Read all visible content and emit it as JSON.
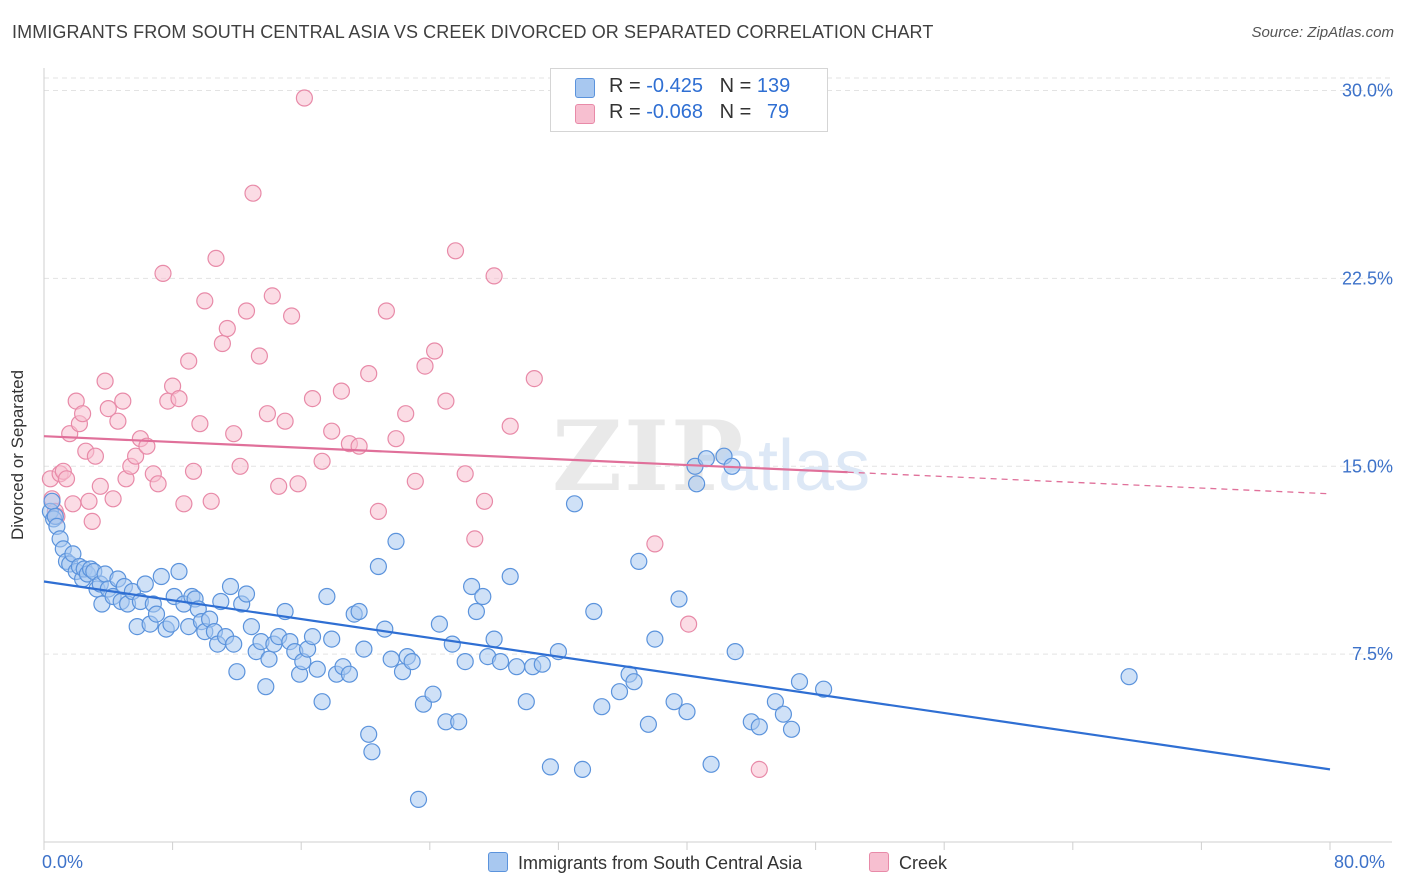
{
  "header": {
    "title": "IMMIGRANTS FROM SOUTH CENTRAL ASIA VS CREEK DIVORCED OR SEPARATED CORRELATION CHART",
    "source": "Source: ZipAtlas.com"
  },
  "watermark": {
    "zip": "ZIP",
    "atlas": "atlas"
  },
  "legend": {
    "rows": [
      {
        "r_label": "R = ",
        "r_value": "-0.425",
        "n_label": "N = ",
        "n_value": "139"
      },
      {
        "r_label": "R = ",
        "r_value": "-0.068",
        "n_label": "N = ",
        "n_value": "79"
      }
    ]
  },
  "colors": {
    "blue_fill": "#a8c8f0",
    "blue_stroke": "#5b93dc",
    "blue_line": "#2f6fd3",
    "pink_fill": "#f7bfd0",
    "pink_stroke": "#e88aa8",
    "pink_line": "#e0709a",
    "grid": "#e3e3e3",
    "tick_text": "#3d72c9"
  },
  "chart_data": {
    "type": "scatter",
    "title": "IMMIGRANTS FROM SOUTH CENTRAL ASIA VS CREEK DIVORCED OR SEPARATED CORRELATION CHART",
    "xlabel": "",
    "ylabel": "Divorced or Separated",
    "xlim": [
      0,
      80
    ],
    "ylim": [
      0,
      30.5
    ],
    "x_tick_labels": [
      "0.0%",
      "80.0%"
    ],
    "y_ticks": [
      7.5,
      15.0,
      22.5,
      30.0
    ],
    "y_tick_labels": [
      "7.5%",
      "15.0%",
      "22.5%",
      "30.0%"
    ],
    "grid": true,
    "legend_position": "top-center",
    "series": [
      {
        "name": "Immigrants from South Central Asia",
        "r": -0.425,
        "n": 139,
        "trend": {
          "x": [
            0,
            80
          ],
          "y": [
            10.4,
            2.9
          ],
          "solid_to": 80
        },
        "points": [
          [
            0.4,
            13.2
          ],
          [
            0.5,
            13.6
          ],
          [
            0.6,
            12.9
          ],
          [
            0.7,
            13.0
          ],
          [
            0.8,
            12.6
          ],
          [
            1.0,
            12.1
          ],
          [
            1.2,
            11.7
          ],
          [
            1.4,
            11.2
          ],
          [
            1.6,
            11.1
          ],
          [
            1.8,
            11.5
          ],
          [
            2.0,
            10.8
          ],
          [
            2.2,
            11.0
          ],
          [
            2.4,
            10.5
          ],
          [
            2.5,
            10.9
          ],
          [
            2.7,
            10.7
          ],
          [
            2.9,
            10.9
          ],
          [
            3.1,
            10.8
          ],
          [
            3.3,
            10.1
          ],
          [
            3.5,
            10.3
          ],
          [
            3.6,
            9.5
          ],
          [
            3.8,
            10.7
          ],
          [
            4.0,
            10.1
          ],
          [
            4.3,
            9.8
          ],
          [
            4.6,
            10.5
          ],
          [
            4.8,
            9.6
          ],
          [
            5.0,
            10.2
          ],
          [
            5.2,
            9.5
          ],
          [
            5.5,
            10.0
          ],
          [
            5.8,
            8.6
          ],
          [
            6.0,
            9.6
          ],
          [
            6.3,
            10.3
          ],
          [
            6.6,
            8.7
          ],
          [
            6.8,
            9.5
          ],
          [
            7.0,
            9.1
          ],
          [
            7.3,
            10.6
          ],
          [
            7.6,
            8.5
          ],
          [
            7.9,
            8.7
          ],
          [
            8.1,
            9.8
          ],
          [
            8.4,
            10.8
          ],
          [
            8.7,
            9.5
          ],
          [
            9.0,
            8.6
          ],
          [
            9.2,
            9.8
          ],
          [
            9.4,
            9.7
          ],
          [
            9.6,
            9.3
          ],
          [
            9.8,
            8.8
          ],
          [
            10.0,
            8.4
          ],
          [
            10.3,
            8.9
          ],
          [
            10.6,
            8.4
          ],
          [
            10.8,
            7.9
          ],
          [
            11.0,
            9.6
          ],
          [
            11.3,
            8.2
          ],
          [
            11.6,
            10.2
          ],
          [
            11.8,
            7.9
          ],
          [
            12.0,
            6.8
          ],
          [
            12.3,
            9.5
          ],
          [
            12.6,
            9.9
          ],
          [
            12.9,
            8.6
          ],
          [
            13.2,
            7.6
          ],
          [
            13.5,
            8.0
          ],
          [
            13.8,
            6.2
          ],
          [
            14.0,
            7.3
          ],
          [
            14.3,
            7.9
          ],
          [
            14.6,
            8.2
          ],
          [
            15.0,
            9.2
          ],
          [
            15.3,
            8.0
          ],
          [
            15.6,
            7.6
          ],
          [
            15.9,
            6.7
          ],
          [
            16.1,
            7.2
          ],
          [
            16.4,
            7.7
          ],
          [
            16.7,
            8.2
          ],
          [
            17.0,
            6.9
          ],
          [
            17.3,
            5.6
          ],
          [
            17.6,
            9.8
          ],
          [
            17.9,
            8.1
          ],
          [
            18.2,
            6.7
          ],
          [
            18.6,
            7.0
          ],
          [
            19.0,
            6.7
          ],
          [
            19.3,
            9.1
          ],
          [
            19.6,
            9.2
          ],
          [
            19.9,
            7.7
          ],
          [
            20.2,
            4.3
          ],
          [
            20.4,
            3.6
          ],
          [
            20.8,
            11.0
          ],
          [
            21.2,
            8.5
          ],
          [
            21.6,
            7.3
          ],
          [
            21.9,
            12.0
          ],
          [
            22.3,
            6.8
          ],
          [
            22.6,
            7.4
          ],
          [
            22.9,
            7.2
          ],
          [
            23.3,
            1.7
          ],
          [
            23.6,
            5.5
          ],
          [
            24.2,
            5.9
          ],
          [
            24.6,
            8.7
          ],
          [
            25.0,
            4.8
          ],
          [
            25.4,
            7.9
          ],
          [
            25.8,
            4.8
          ],
          [
            26.2,
            7.2
          ],
          [
            26.6,
            10.2
          ],
          [
            26.9,
            9.2
          ],
          [
            27.3,
            9.8
          ],
          [
            27.6,
            7.4
          ],
          [
            28.0,
            8.1
          ],
          [
            28.4,
            7.2
          ],
          [
            29.0,
            10.6
          ],
          [
            29.4,
            7.0
          ],
          [
            30.0,
            5.6
          ],
          [
            30.4,
            7.0
          ],
          [
            31.0,
            7.1
          ],
          [
            31.5,
            3.0
          ],
          [
            32.0,
            7.6
          ],
          [
            33.0,
            13.5
          ],
          [
            33.5,
            2.9
          ],
          [
            34.2,
            9.2
          ],
          [
            34.7,
            5.4
          ],
          [
            35.8,
            6.0
          ],
          [
            36.4,
            6.7
          ],
          [
            36.7,
            6.4
          ],
          [
            37.0,
            11.2
          ],
          [
            37.6,
            4.7
          ],
          [
            38.0,
            8.1
          ],
          [
            39.2,
            5.6
          ],
          [
            39.5,
            9.7
          ],
          [
            40.0,
            5.2
          ],
          [
            40.5,
            15.0
          ],
          [
            40.6,
            14.3
          ],
          [
            41.2,
            15.3
          ],
          [
            41.5,
            3.1
          ],
          [
            42.3,
            15.4
          ],
          [
            42.8,
            15.0
          ],
          [
            43.0,
            7.6
          ],
          [
            44.0,
            4.8
          ],
          [
            44.5,
            4.6
          ],
          [
            45.5,
            5.6
          ],
          [
            46.0,
            5.1
          ],
          [
            46.5,
            4.5
          ],
          [
            47.0,
            6.4
          ],
          [
            48.5,
            6.1
          ],
          [
            67.5,
            6.6
          ]
        ]
      },
      {
        "name": "Creek",
        "r": -0.068,
        "n": 79,
        "trend": {
          "x": [
            0,
            80
          ],
          "y": [
            16.2,
            13.9
          ],
          "solid_to": 50
        },
        "points": [
          [
            0.4,
            14.5
          ],
          [
            0.5,
            13.7
          ],
          [
            0.7,
            13.2
          ],
          [
            0.8,
            13.0
          ],
          [
            1.0,
            14.7
          ],
          [
            1.2,
            14.8
          ],
          [
            1.4,
            14.5
          ],
          [
            1.6,
            16.3
          ],
          [
            1.8,
            13.5
          ],
          [
            2.0,
            17.6
          ],
          [
            2.2,
            16.7
          ],
          [
            2.4,
            17.1
          ],
          [
            2.6,
            15.6
          ],
          [
            2.8,
            13.6
          ],
          [
            3.0,
            12.8
          ],
          [
            3.2,
            15.4
          ],
          [
            3.5,
            14.2
          ],
          [
            3.8,
            18.4
          ],
          [
            4.0,
            17.3
          ],
          [
            4.3,
            13.7
          ],
          [
            4.6,
            16.8
          ],
          [
            4.9,
            17.6
          ],
          [
            5.1,
            14.5
          ],
          [
            5.4,
            15.0
          ],
          [
            5.7,
            15.4
          ],
          [
            6.0,
            16.1
          ],
          [
            6.4,
            15.8
          ],
          [
            6.8,
            14.7
          ],
          [
            7.1,
            14.3
          ],
          [
            7.4,
            22.7
          ],
          [
            7.7,
            17.6
          ],
          [
            8.0,
            18.2
          ],
          [
            8.4,
            17.7
          ],
          [
            8.7,
            13.5
          ],
          [
            9.0,
            19.2
          ],
          [
            9.3,
            14.8
          ],
          [
            9.7,
            16.7
          ],
          [
            10.0,
            21.6
          ],
          [
            10.4,
            13.6
          ],
          [
            10.7,
            23.3
          ],
          [
            11.1,
            19.9
          ],
          [
            11.4,
            20.5
          ],
          [
            11.8,
            16.3
          ],
          [
            12.2,
            15.0
          ],
          [
            12.6,
            21.2
          ],
          [
            13.0,
            25.9
          ],
          [
            13.4,
            19.4
          ],
          [
            13.9,
            17.1
          ],
          [
            14.2,
            21.8
          ],
          [
            14.6,
            14.2
          ],
          [
            15.0,
            16.8
          ],
          [
            15.4,
            21.0
          ],
          [
            15.8,
            14.3
          ],
          [
            16.2,
            29.7
          ],
          [
            16.7,
            17.7
          ],
          [
            17.3,
            15.2
          ],
          [
            17.9,
            16.4
          ],
          [
            18.5,
            18.0
          ],
          [
            19.0,
            15.9
          ],
          [
            19.6,
            15.8
          ],
          [
            20.2,
            18.7
          ],
          [
            20.8,
            13.2
          ],
          [
            21.3,
            21.2
          ],
          [
            21.9,
            16.1
          ],
          [
            22.5,
            17.1
          ],
          [
            23.1,
            14.4
          ],
          [
            23.7,
            19.0
          ],
          [
            24.3,
            19.6
          ],
          [
            25.0,
            17.6
          ],
          [
            25.6,
            23.6
          ],
          [
            26.2,
            14.7
          ],
          [
            26.8,
            12.1
          ],
          [
            27.4,
            13.6
          ],
          [
            28.0,
            22.6
          ],
          [
            29.0,
            16.6
          ],
          [
            30.5,
            18.5
          ],
          [
            38.0,
            11.9
          ],
          [
            40.1,
            8.7
          ],
          [
            44.5,
            2.9
          ]
        ]
      }
    ]
  },
  "bottom_legend": {
    "blue_label": "Immigrants from South Central Asia",
    "pink_label": "Creek"
  },
  "axis": {
    "x_min_label": "0.0%",
    "x_max_label": "80.0%"
  }
}
